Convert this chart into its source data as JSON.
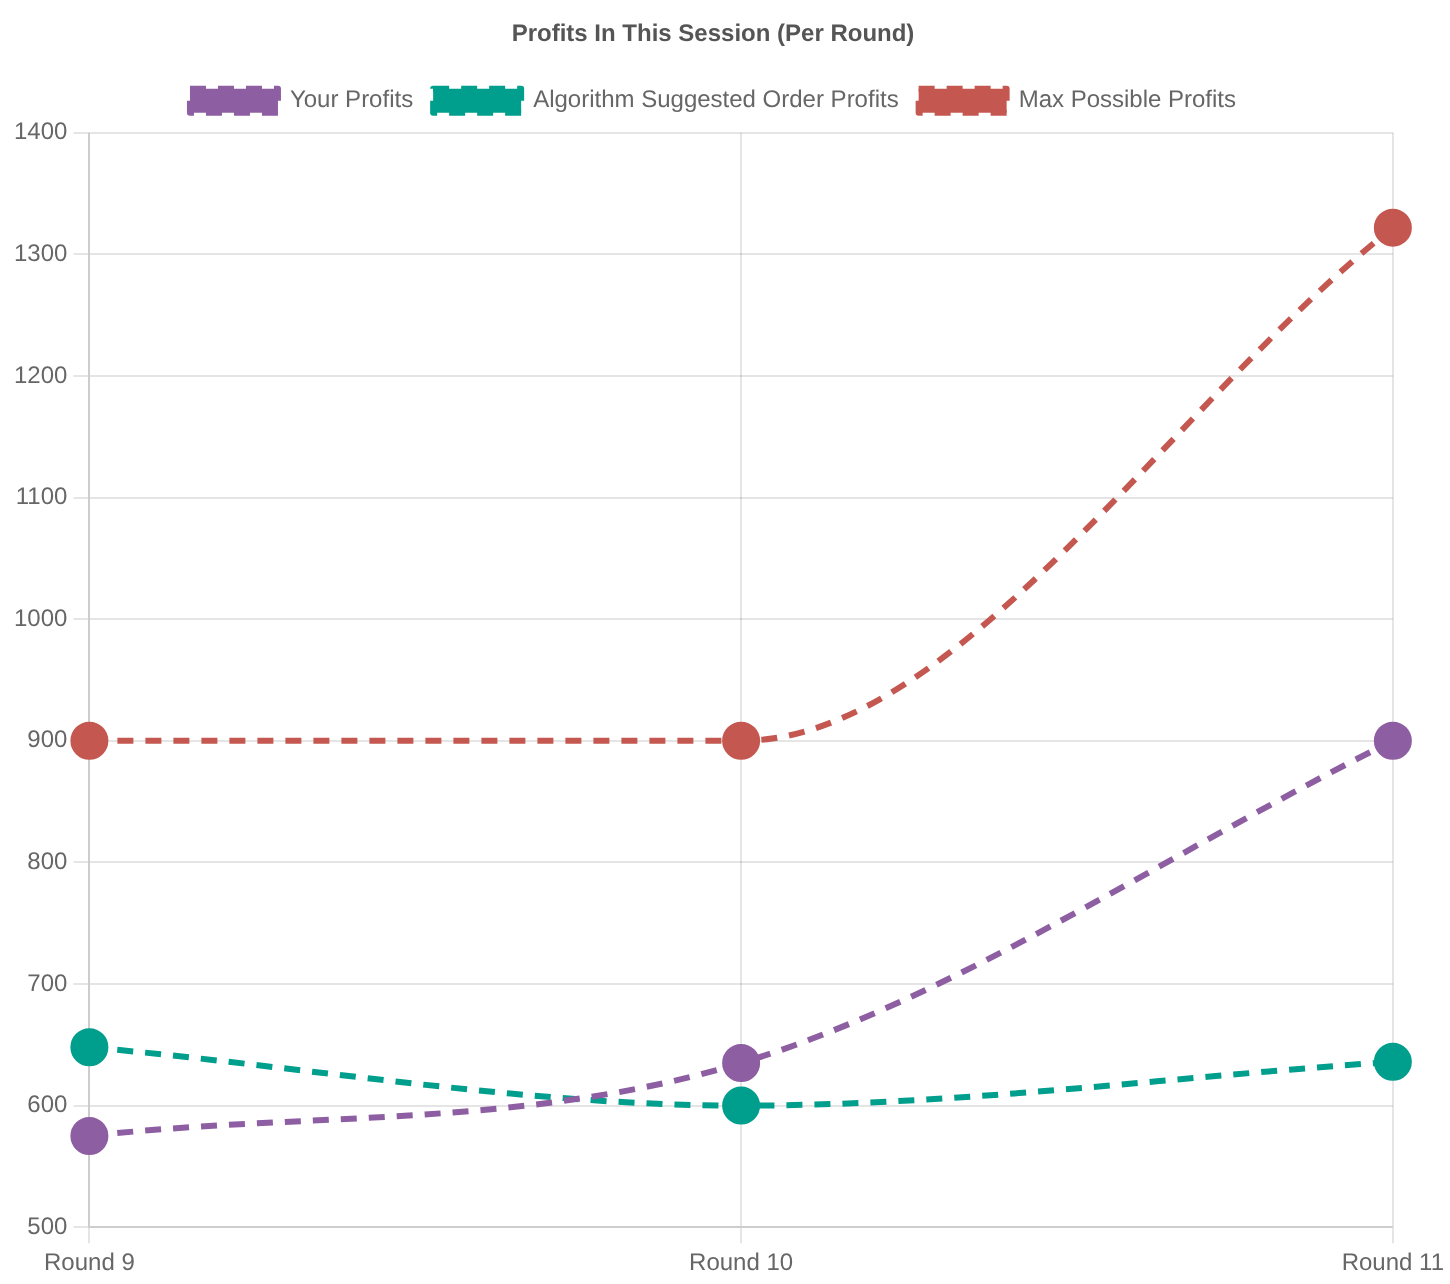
{
  "chart_data": {
    "type": "line",
    "title": "Profits In This Session (Per Round)",
    "categories": [
      "Round 9",
      "Round 10",
      "Round 11"
    ],
    "series": [
      {
        "name": "Your Profits",
        "color": "#8e5ea2",
        "values": [
          575,
          635,
          900
        ]
      },
      {
        "name": "Algorithm Suggested Order Profits",
        "color": "#009e8c",
        "values": [
          648,
          600,
          636
        ]
      },
      {
        "name": "Max Possible Profits",
        "color": "#c45850",
        "values": [
          900,
          900,
          1322
        ]
      }
    ],
    "ylim": [
      500,
      1400
    ],
    "yticks": [
      500,
      600,
      700,
      800,
      900,
      1000,
      1100,
      1200,
      1300,
      1400
    ],
    "grid": true,
    "legend": "top",
    "marker": "circle",
    "line_style": "dashed"
  }
}
